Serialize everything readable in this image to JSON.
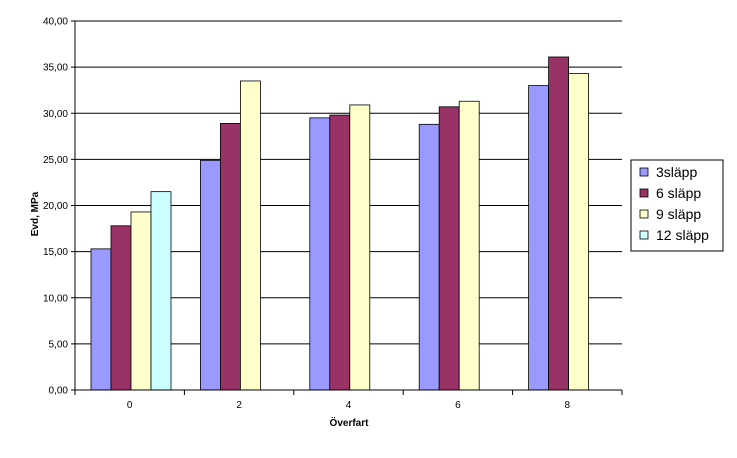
{
  "chart_data": {
    "type": "bar",
    "title": "",
    "xlabel": "Överfart",
    "ylabel": "Evd, MPa",
    "categories": [
      "0",
      "2",
      "4",
      "6",
      "8"
    ],
    "ylim": [
      0,
      40
    ],
    "yticks": [
      "0,00",
      "5,00",
      "10,00",
      "15,00",
      "20,00",
      "25,00",
      "30,00",
      "35,00",
      "40,00"
    ],
    "grid": true,
    "legend_position": "right",
    "series": [
      {
        "name": "3släpp",
        "color": "#9999ff",
        "values": [
          15.3,
          24.9,
          29.5,
          28.8,
          33.0
        ]
      },
      {
        "name": "6 släpp",
        "color": "#993366",
        "values": [
          17.8,
          28.9,
          29.8,
          30.7,
          36.1
        ]
      },
      {
        "name": "9 släpp",
        "color": "#ffffcc",
        "values": [
          19.3,
          33.5,
          30.9,
          31.3,
          34.3
        ]
      },
      {
        "name": "12 släpp",
        "color": "#ccffff",
        "values": [
          21.5,
          null,
          null,
          null,
          null
        ]
      }
    ]
  }
}
